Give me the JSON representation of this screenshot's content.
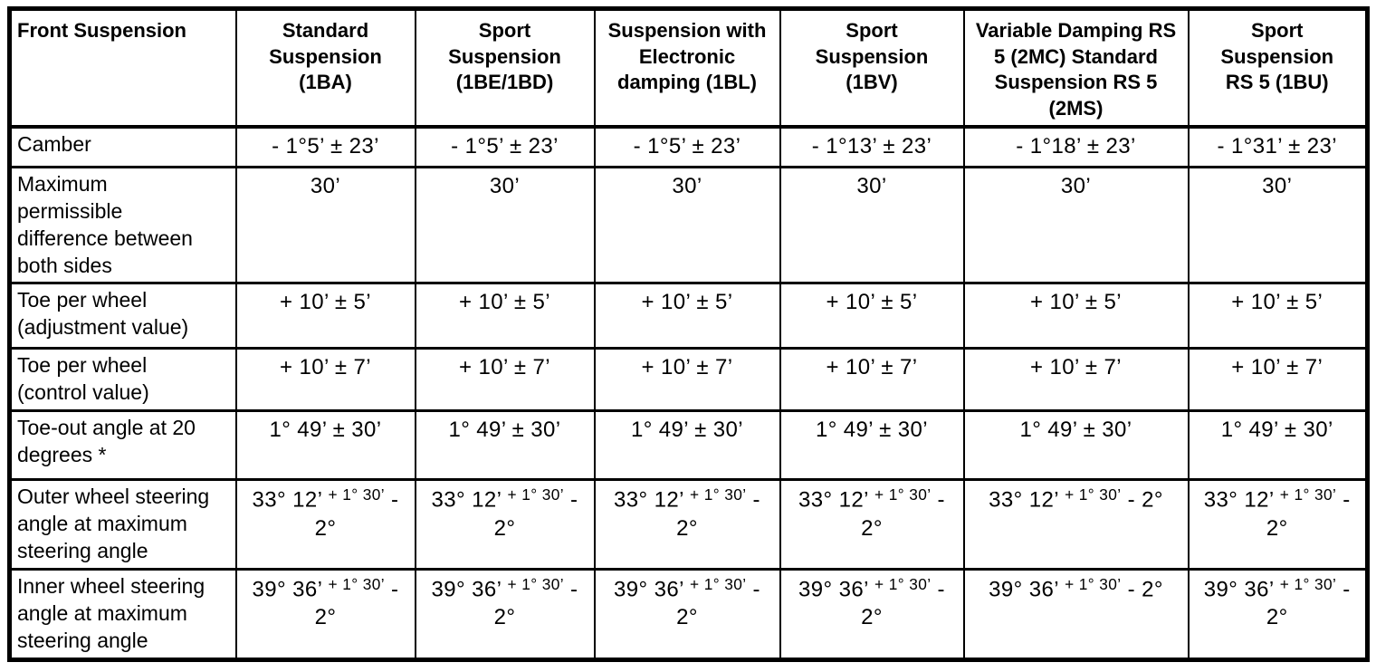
{
  "table": {
    "corner_label": "Front Suspension",
    "columns": [
      "Standard\nSuspension\n(1BA)",
      "Sport\nSuspension\n(1BE/1BD)",
      "Suspension with\nElectronic\ndamping (1BL)",
      "Sport\nSuspension\n(1BV)",
      "Variable Damping RS\n5 (2MC) Standard\nSuspension RS 5\n(2MS)",
      "Sport\nSuspension\nRS 5 (1BU)"
    ],
    "rows": [
      {
        "label": "Camber",
        "values": [
          "- 1°5’ ± 23’",
          "- 1°5’ ± 23’",
          "- 1°5’ ± 23’",
          "- 1°13’ ± 23’",
          "- 1°18’ ± 23’",
          "- 1°31’ ± 23’"
        ]
      },
      {
        "label": "Maximum\npermissible\ndifference between\nboth sides",
        "values": [
          "30’",
          "30’",
          "30’",
          "30’",
          "30’",
          "30’"
        ]
      },
      {
        "label": "Toe per wheel\n(adjustment value)",
        "values": [
          "+ 10’ ± 5’",
          "+ 10’ ± 5’",
          "+ 10’ ± 5’",
          "+ 10’ ± 5’",
          "+ 10’ ± 5’",
          "+ 10’ ± 5’"
        ]
      },
      {
        "label": "Toe per wheel\n(control value)",
        "values": [
          "+ 10’ ± 7’",
          "+ 10’ ± 7’",
          "+ 10’ ± 7’",
          "+ 10’ ± 7’",
          "+ 10’ ± 7’",
          "+ 10’ ± 7’"
        ]
      },
      {
        "label": "Toe-out angle at 20\ndegrees *",
        "values": [
          "1° 49’ ± 30’",
          "1° 49’ ± 30’",
          "1° 49’ ± 30’",
          "1° 49’ ± 30’",
          "1° 49’ ± 30’",
          "1° 49’ ± 30’"
        ]
      },
      {
        "label": "Outer wheel steering\nangle at maximum\nsteering angle",
        "values": [
          {
            "main": "33° 12’",
            "sup": "+ 1° 30’",
            "tail": "- 2°"
          },
          {
            "main": "33° 12’",
            "sup": "+ 1° 30’",
            "tail": "- 2°"
          },
          {
            "main": "33° 12’",
            "sup": "+ 1° 30’",
            "tail": "- 2°"
          },
          {
            "main": "33° 12’",
            "sup": "+ 1° 30’",
            "tail": "- 2°"
          },
          {
            "main": "33° 12’",
            "sup": "+ 1° 30’",
            "tail": "- 2°"
          },
          {
            "main": "33° 12’",
            "sup": "+ 1° 30’",
            "tail": "- 2°"
          }
        ]
      },
      {
        "label": "Inner wheel steering\nangle at maximum\nsteering angle",
        "values": [
          {
            "main": "39° 36’",
            "sup": "+ 1° 30’",
            "tail": "- 2°"
          },
          {
            "main": "39° 36’",
            "sup": "+ 1° 30’",
            "tail": "- 2°"
          },
          {
            "main": "39° 36’",
            "sup": "+ 1° 30’",
            "tail": "- 2°"
          },
          {
            "main": "39° 36’",
            "sup": "+ 1° 30’",
            "tail": "- 2°"
          },
          {
            "main": "39° 36’",
            "sup": "+ 1° 30’",
            "tail": "- 2°"
          },
          {
            "main": "39° 36’",
            "sup": "+ 1° 30’",
            "tail": "- 2°"
          }
        ]
      }
    ],
    "colors": {
      "border": "#000000",
      "background": "#ffffff",
      "text": "#000000"
    }
  }
}
